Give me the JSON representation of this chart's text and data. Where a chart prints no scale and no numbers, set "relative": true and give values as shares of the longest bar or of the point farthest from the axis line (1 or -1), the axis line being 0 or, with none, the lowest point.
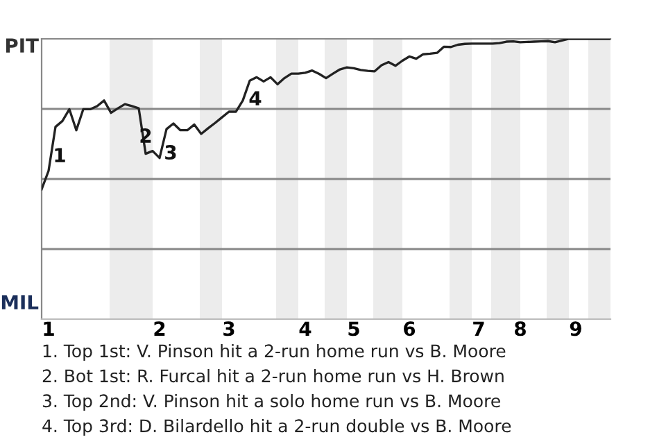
{
  "chart_data": {
    "type": "line",
    "relative": true,
    "grid": false,
    "legend": false,
    "marker": "none",
    "line_style": "solid",
    "categories": [
      null,
      "1",
      null,
      null,
      null,
      null,
      null,
      null,
      null,
      null,
      null,
      null,
      null,
      null,
      null,
      null,
      null,
      "2",
      null,
      null,
      null,
      null,
      null,
      null,
      null,
      null,
      null,
      "3",
      null,
      null,
      null,
      null,
      null,
      null,
      null,
      null,
      null,
      null,
      "4",
      null,
      null,
      null,
      null,
      null,
      null,
      "5",
      null,
      null,
      null,
      null,
      null,
      null,
      null,
      "6",
      null,
      null,
      null,
      null,
      null,
      null,
      null,
      null,
      null,
      "7",
      null,
      null,
      null,
      null,
      null,
      "8",
      null,
      null,
      null,
      null,
      null,
      null,
      null,
      "9",
      null,
      null,
      null,
      null,
      null
    ],
    "series": [
      {
        "color": "#222222",
        "values": [
          0.463,
          0.529,
          0.686,
          0.707,
          0.749,
          0.674,
          0.749,
          0.749,
          0.76,
          0.78,
          0.736,
          0.752,
          0.767,
          0.76,
          0.752,
          0.59,
          0.6,
          0.575,
          0.678,
          0.698,
          0.674,
          0.674,
          0.694,
          0.661,
          0.681,
          0.7,
          0.72,
          0.74,
          0.74,
          0.78,
          0.851,
          0.863,
          0.848,
          0.863,
          0.838,
          0.86,
          0.876,
          0.876,
          0.879,
          0.887,
          0.875,
          0.86,
          0.876,
          0.891,
          0.898,
          0.895,
          0.889,
          0.886,
          0.884,
          0.906,
          0.917,
          0.904,
          0.922,
          0.937,
          0.929,
          0.945,
          0.947,
          0.95,
          0.972,
          0.971,
          0.979,
          0.982,
          0.983,
          0.983,
          0.983,
          0.983,
          0.985,
          0.99,
          0.991,
          0.988,
          0.989,
          0.99,
          0.991,
          0.992,
          0.988,
          0.994,
          1,
          1,
          1,
          1,
          1,
          1,
          1
        ]
      }
    ],
    "ref_lines": [
      {
        "axis": "y",
        "value": 0.25,
        "color": "#888888"
      },
      {
        "axis": "y",
        "value": 0.5,
        "color": "#888888"
      },
      {
        "axis": "y",
        "value": 0.75,
        "color": "#888888"
      }
    ],
    "annotations": [
      "PIT",
      "MIL",
      "1",
      "2",
      "3",
      "4",
      "1. Top 1st: V. Pinson hit a 2-run home run vs B. Moore",
      "2. Bot 1st: R. Furcal hit a 2-run home run vs H. Brown",
      "3. Top 2nd: V. Pinson hit a solo home run vs B. Moore",
      "4. Top 3rd: D. Bilardello hit a 2-run double vs B. Moore"
    ]
  }
}
